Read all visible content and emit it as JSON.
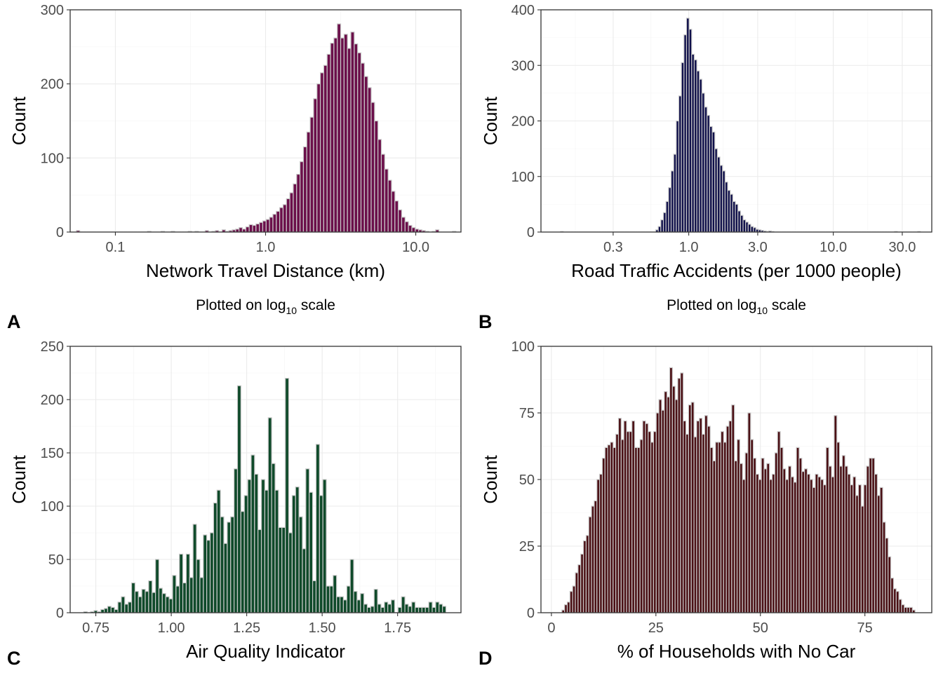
{
  "colors": {
    "panel_background": "#ffffff",
    "grid": "#ebebeb",
    "bar_outline": "#c8c8c8",
    "frame": "#333333"
  },
  "chart_data": [
    {
      "id": "A",
      "panel_label": "A",
      "type": "bar",
      "title": "",
      "xlabel": "Network Travel Distance (km)",
      "ylabel": "Count",
      "caption": "Plotted on log",
      "caption_sub": "10",
      "caption_tail": " scale",
      "x_scale": "log10",
      "xlim": [
        0.05,
        20
      ],
      "ylim": [
        0,
        300
      ],
      "x_ticks": [
        0.1,
        1.0,
        10.0
      ],
      "x_tick_labels": [
        "0.1",
        "1.0",
        "10.0"
      ],
      "y_ticks": [
        0,
        100,
        200,
        300
      ],
      "y_tick_labels": [
        "0",
        "100",
        "200",
        "300"
      ],
      "grid": true,
      "fill_color": "#6b0f4a",
      "bin_start": 0.055,
      "bin_end": 18.5,
      "values": [
        2,
        0,
        0,
        0,
        0,
        0,
        0,
        0,
        0,
        0,
        0,
        0,
        0,
        0,
        0,
        0,
        0,
        0,
        0,
        0,
        0,
        1,
        0,
        0,
        0,
        1,
        0,
        0,
        1,
        0,
        0,
        0,
        0,
        1,
        0,
        1,
        0,
        0,
        2,
        0,
        1,
        2,
        0,
        3,
        1,
        2,
        3,
        4,
        6,
        4,
        7,
        10,
        9,
        11,
        13,
        15,
        17,
        20,
        24,
        28,
        33,
        37,
        45,
        53,
        65,
        78,
        95,
        115,
        135,
        155,
        180,
        200,
        215,
        225,
        240,
        255,
        262,
        281,
        262,
        267,
        248,
        270,
        254,
        242,
        228,
        210,
        195,
        175,
        150,
        125,
        105,
        85,
        70,
        55,
        42,
        30,
        20,
        14,
        9,
        6,
        4,
        3,
        2,
        1,
        0,
        1,
        3,
        0,
        0,
        0,
        0,
        1
      ]
    },
    {
      "id": "B",
      "panel_label": "B",
      "type": "bar",
      "title": "",
      "xlabel": "Road Traffic Accidents (per 1000 people)",
      "ylabel": "Count",
      "caption": "Plotted on log",
      "caption_sub": "10",
      "caption_tail": " scale",
      "x_scale": "log10",
      "xlim": [
        0.095,
        48
      ],
      "ylim": [
        0,
        400
      ],
      "x_ticks": [
        0.3,
        1.0,
        3.0,
        10.0,
        30.0
      ],
      "x_tick_labels": [
        "0.3",
        "1.0",
        "3.0",
        "10.0",
        "30.0"
      ],
      "y_ticks": [
        0,
        100,
        200,
        300,
        400
      ],
      "y_tick_labels": [
        "0",
        "100",
        "200",
        "300",
        "400"
      ],
      "grid": true,
      "fill_color": "#0f0f4a",
      "bin_start": 0.13,
      "bin_end": 40,
      "values": [
        1,
        0,
        0,
        0,
        0,
        0,
        0,
        0,
        0,
        0,
        0,
        0,
        0,
        0,
        0,
        0,
        0,
        0,
        0,
        0,
        0,
        0,
        0,
        0,
        0,
        0,
        0,
        0,
        0,
        0,
        0,
        0,
        0,
        0,
        0,
        0,
        0,
        4,
        10,
        22,
        35,
        55,
        80,
        110,
        140,
        200,
        245,
        305,
        355,
        385,
        365,
        320,
        310,
        290,
        275,
        250,
        225,
        210,
        190,
        180,
        150,
        135,
        120,
        110,
        90,
        75,
        68,
        55,
        50,
        38,
        30,
        22,
        18,
        14,
        10,
        8,
        5,
        4,
        3,
        2,
        1,
        2,
        1,
        0,
        0,
        0,
        0,
        0,
        0,
        0,
        0,
        0,
        0,
        0,
        0,
        0,
        0,
        0,
        0,
        0,
        0,
        0,
        0,
        0,
        0,
        0,
        0,
        0,
        0,
        0,
        0,
        0,
        0,
        0,
        0,
        0,
        0,
        0,
        0,
        0,
        0,
        0,
        0,
        0,
        0,
        0,
        0,
        0,
        0,
        0,
        1,
        0,
        0,
        0,
        0,
        0,
        0,
        0,
        0,
        1
      ]
    },
    {
      "id": "C",
      "panel_label": "C",
      "type": "bar",
      "title": "",
      "xlabel": "Air Quality Indicator",
      "ylabel": "Count",
      "x_scale": "linear",
      "xlim": [
        0.665,
        1.96
      ],
      "ylim": [
        0,
        250
      ],
      "x_ticks": [
        0.75,
        1.0,
        1.25,
        1.5,
        1.75
      ],
      "x_tick_labels": [
        "0.75",
        "1.00",
        "1.25",
        "1.50",
        "1.75"
      ],
      "y_ticks": [
        0,
        50,
        100,
        150,
        200,
        250
      ],
      "y_tick_labels": [
        "0",
        "50",
        "100",
        "150",
        "200",
        "250"
      ],
      "grid": true,
      "fill_color": "#0f4a2a",
      "bin_start": 0.71,
      "bin_end": 1.91,
      "values": [
        1,
        0,
        1,
        2,
        1,
        3,
        4,
        6,
        5,
        3,
        10,
        15,
        8,
        10,
        28,
        20,
        15,
        22,
        20,
        30,
        19,
        50,
        23,
        18,
        15,
        13,
        35,
        25,
        55,
        28,
        55,
        33,
        83,
        50,
        33,
        73,
        68,
        75,
        103,
        115,
        90,
        65,
        85,
        90,
        135,
        213,
        95,
        110,
        125,
        148,
        130,
        78,
        125,
        115,
        183,
        140,
        115,
        80,
        80,
        220,
        75,
        110,
        118,
        90,
        60,
        135,
        113,
        30,
        158,
        110,
        125,
        25,
        25,
        35,
        15,
        15,
        12,
        25,
        50,
        20,
        12,
        18,
        8,
        5,
        6,
        22,
        8,
        5,
        10,
        8,
        12,
        0,
        5,
        15,
        8,
        6,
        10,
        5,
        5,
        5,
        5,
        10,
        5,
        10,
        8,
        6
      ]
    },
    {
      "id": "D",
      "panel_label": "D",
      "type": "bar",
      "title": "",
      "xlabel": "% of Households with No Car",
      "ylabel": "Count",
      "x_scale": "linear",
      "xlim": [
        -2.5,
        91
      ],
      "ylim": [
        0,
        100
      ],
      "x_ticks": [
        0,
        25,
        50,
        75
      ],
      "x_tick_labels": [
        "0",
        "25",
        "50",
        "75"
      ],
      "y_ticks": [
        0,
        25,
        50,
        75,
        100
      ],
      "y_tick_labels": [
        "0",
        "25",
        "50",
        "75",
        "100"
      ],
      "grid": true,
      "fill_color": "#4a0f14",
      "bin_start": 2.5,
      "bin_end": 87,
      "values": [
        1,
        3,
        4,
        8,
        10,
        15,
        18,
        22,
        27,
        29,
        36,
        40,
        42,
        50,
        52,
        58,
        62,
        63,
        64,
        62,
        67,
        73,
        65,
        72,
        68,
        68,
        72,
        62,
        62,
        65,
        72,
        71,
        68,
        64,
        68,
        75,
        80,
        76,
        83,
        81,
        92,
        85,
        80,
        88,
        90,
        72,
        67,
        78,
        79,
        66,
        72,
        73,
        67,
        74,
        70,
        62,
        57,
        64,
        64,
        68,
        64,
        70,
        72,
        78,
        57,
        65,
        56,
        50,
        60,
        75,
        65,
        58,
        52,
        50,
        58,
        54,
        56,
        50,
        52,
        60,
        68,
        62,
        54,
        50,
        55,
        51,
        49,
        62,
        58,
        53,
        54,
        52,
        50,
        47,
        52,
        51,
        50,
        48,
        62,
        55,
        51,
        74,
        64,
        55,
        59,
        55,
        52,
        48,
        51,
        44,
        48,
        40,
        48,
        55,
        58,
        58,
        52,
        44,
        47,
        34,
        28,
        21,
        13,
        9,
        8,
        5,
        3,
        2,
        2,
        2,
        1
      ]
    }
  ]
}
